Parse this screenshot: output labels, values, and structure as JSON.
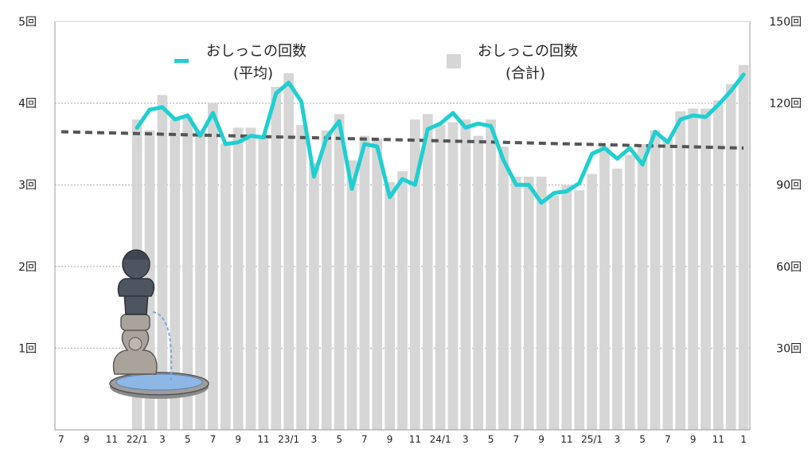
{
  "chart_data": {
    "type": "bar+line",
    "x_tick_labels": [
      "7",
      "9",
      "11",
      "22/1",
      "3",
      "5",
      "7",
      "9",
      "11",
      "23/1",
      "3",
      "5",
      "7",
      "9",
      "11",
      "24/1",
      "3",
      "5",
      "7",
      "9",
      "11",
      "25/1",
      "3",
      "5",
      "7",
      "9",
      "11",
      "1"
    ],
    "left_axis": {
      "tick_labels": [
        "1回",
        "2回",
        "3回",
        "4回",
        "5回"
      ],
      "range": [
        0,
        5
      ]
    },
    "right_axis": {
      "tick_labels": [
        "30回",
        "60回",
        "90回",
        "120回",
        "150回"
      ],
      "range": [
        0,
        150
      ]
    },
    "legend": [
      {
        "name": "おしっこの回数",
        "sub": "(平均)",
        "kind": "line",
        "color": "#1fcfd1"
      },
      {
        "name": "おしっこの回数",
        "sub": "(合計)",
        "kind": "bar",
        "color": "#d6d6d6"
      }
    ],
    "months_count": 55,
    "bar_start_index": 6,
    "totals": [
      114,
      110,
      123,
      114,
      115,
      110,
      120,
      105,
      111,
      111,
      107,
      126,
      131,
      112,
      98,
      110,
      116,
      99,
      108,
      107,
      91,
      95,
      114,
      116,
      112,
      113,
      114,
      108,
      114,
      104,
      93,
      93,
      93,
      86,
      90,
      88,
      94,
      104,
      96,
      101,
      105,
      110,
      107,
      117,
      118,
      118,
      121,
      127,
      134
    ],
    "averages": [
      3.7,
      3.92,
      3.95,
      3.8,
      3.85,
      3.6,
      3.88,
      3.5,
      3.52,
      3.6,
      3.58,
      4.12,
      4.25,
      4.02,
      3.1,
      3.58,
      3.78,
      2.95,
      3.5,
      3.47,
      2.85,
      3.07,
      3.0,
      3.68,
      3.75,
      3.88,
      3.7,
      3.75,
      3.72,
      3.3,
      3.0,
      3.0,
      2.78,
      2.9,
      2.92,
      3.02,
      3.38,
      3.45,
      3.32,
      3.45,
      3.25,
      3.65,
      3.52,
      3.8,
      3.85,
      3.83,
      3.98,
      4.15,
      4.35
    ],
    "trend": {
      "start": 3.65,
      "end": 3.45
    },
    "colors": {
      "bar": "#d6d6d6",
      "line": "#1fcfd1",
      "trend": "#555555",
      "grid": "#aaaaaa"
    }
  }
}
